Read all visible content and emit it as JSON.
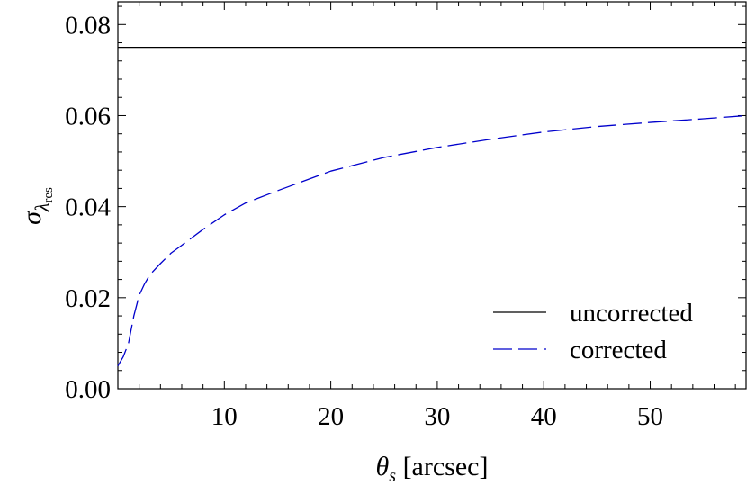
{
  "chart_data": {
    "type": "line",
    "xlabel": {
      "main": "θ",
      "sub": "s",
      "rest": " [arcsec]"
    },
    "ylabel": {
      "main": "σ",
      "sub": "λ",
      "subsub": "res"
    },
    "xlim": [
      0,
      59
    ],
    "ylim": [
      0,
      0.085
    ],
    "x_ticks": [
      10,
      20,
      30,
      40,
      50
    ],
    "x_tick_labels": [
      "10",
      "20",
      "30",
      "40",
      "50"
    ],
    "y_ticks": [
      0,
      0.02,
      0.04,
      0.06,
      0.08
    ],
    "y_tick_labels": [
      "0.00",
      "0.02",
      "0.04",
      "0.06",
      "0.08"
    ],
    "grid": false,
    "legend_position": "bottom-right",
    "series": [
      {
        "name": "uncorrected",
        "style": "solid",
        "color": "#000000",
        "x": [
          0,
          59
        ],
        "y": [
          0.075,
          0.075
        ]
      },
      {
        "name": "corrected",
        "style": "dashed",
        "color": "#0000cc",
        "x": [
          0,
          0.5,
          1,
          1.5,
          2,
          2.5,
          3,
          4,
          5,
          6,
          8,
          10,
          12,
          15,
          20,
          25,
          30,
          35,
          40,
          45,
          50,
          55,
          59
        ],
        "y": [
          0.005,
          0.007,
          0.01,
          0.016,
          0.0205,
          0.023,
          0.025,
          0.0275,
          0.0298,
          0.0315,
          0.035,
          0.0382,
          0.0408,
          0.0435,
          0.0478,
          0.0508,
          0.053,
          0.0548,
          0.0564,
          0.0576,
          0.0585,
          0.0593,
          0.06
        ]
      }
    ]
  }
}
